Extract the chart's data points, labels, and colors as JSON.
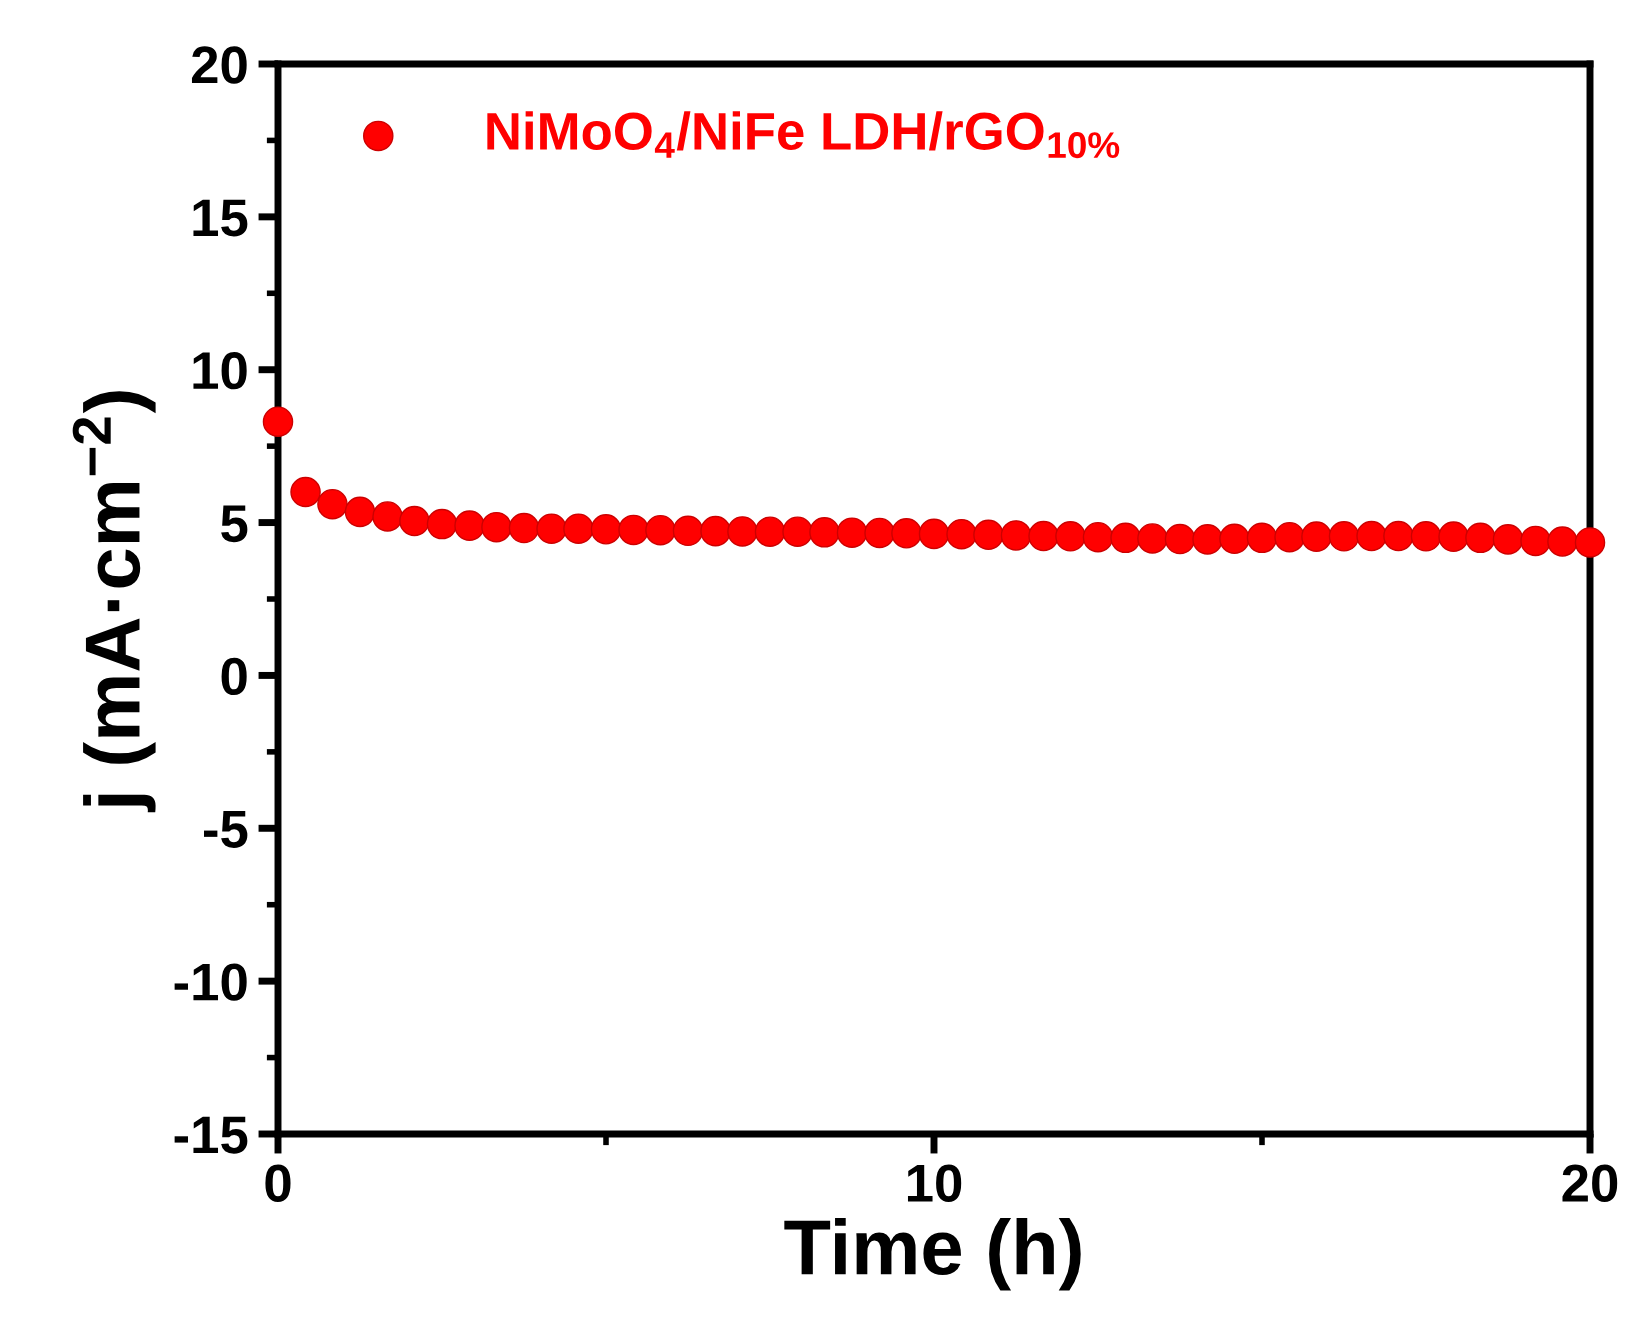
{
  "chart_data": {
    "type": "scatter",
    "xlabel": "Time (h)",
    "ylabel": "j (mA·cm$^{−2}$)",
    "xlim": [
      0,
      20
    ],
    "xticks": [
      0,
      10,
      20
    ],
    "ylim": [
      -15,
      20
    ],
    "yticks": [
      -15,
      -10,
      -5,
      0,
      5,
      10,
      15,
      20
    ],
    "grid": false,
    "legend": "top left",
    "marker": "circle",
    "x": [
      0,
      0.42,
      0.83,
      1.25,
      1.67,
      2.08,
      2.5,
      2.92,
      3.33,
      3.75,
      4.17,
      4.58,
      5,
      5.42,
      5.83,
      6.25,
      6.67,
      7.08,
      7.5,
      7.92,
      8.33,
      8.75,
      9.17,
      9.58,
      10,
      10.42,
      10.83,
      11.25,
      11.67,
      12.08,
      12.5,
      12.92,
      13.33,
      13.75,
      14.17,
      14.58,
      15,
      15.42,
      15.83,
      16.25,
      16.67,
      17.08,
      17.5,
      17.92,
      18.33,
      18.75,
      19.17,
      19.58,
      20
    ],
    "series": [
      {
        "name": "NiMoO$_{4}$/NiFe LDH/rGO$_{10%}$",
        "color": "#ff0000",
        "values": [
          8.3,
          6.0,
          5.6,
          5.35,
          5.2,
          5.05,
          4.95,
          4.9,
          4.85,
          4.82,
          4.8,
          4.8,
          4.78,
          4.76,
          4.75,
          4.73,
          4.72,
          4.71,
          4.7,
          4.7,
          4.68,
          4.67,
          4.66,
          4.65,
          4.63,
          4.62,
          4.6,
          4.58,
          4.56,
          4.55,
          4.52,
          4.5,
          4.48,
          4.46,
          4.45,
          4.47,
          4.5,
          4.52,
          4.54,
          4.55,
          4.56,
          4.56,
          4.55,
          4.54,
          4.5,
          4.45,
          4.4,
          4.38,
          4.35
        ]
      }
    ]
  }
}
